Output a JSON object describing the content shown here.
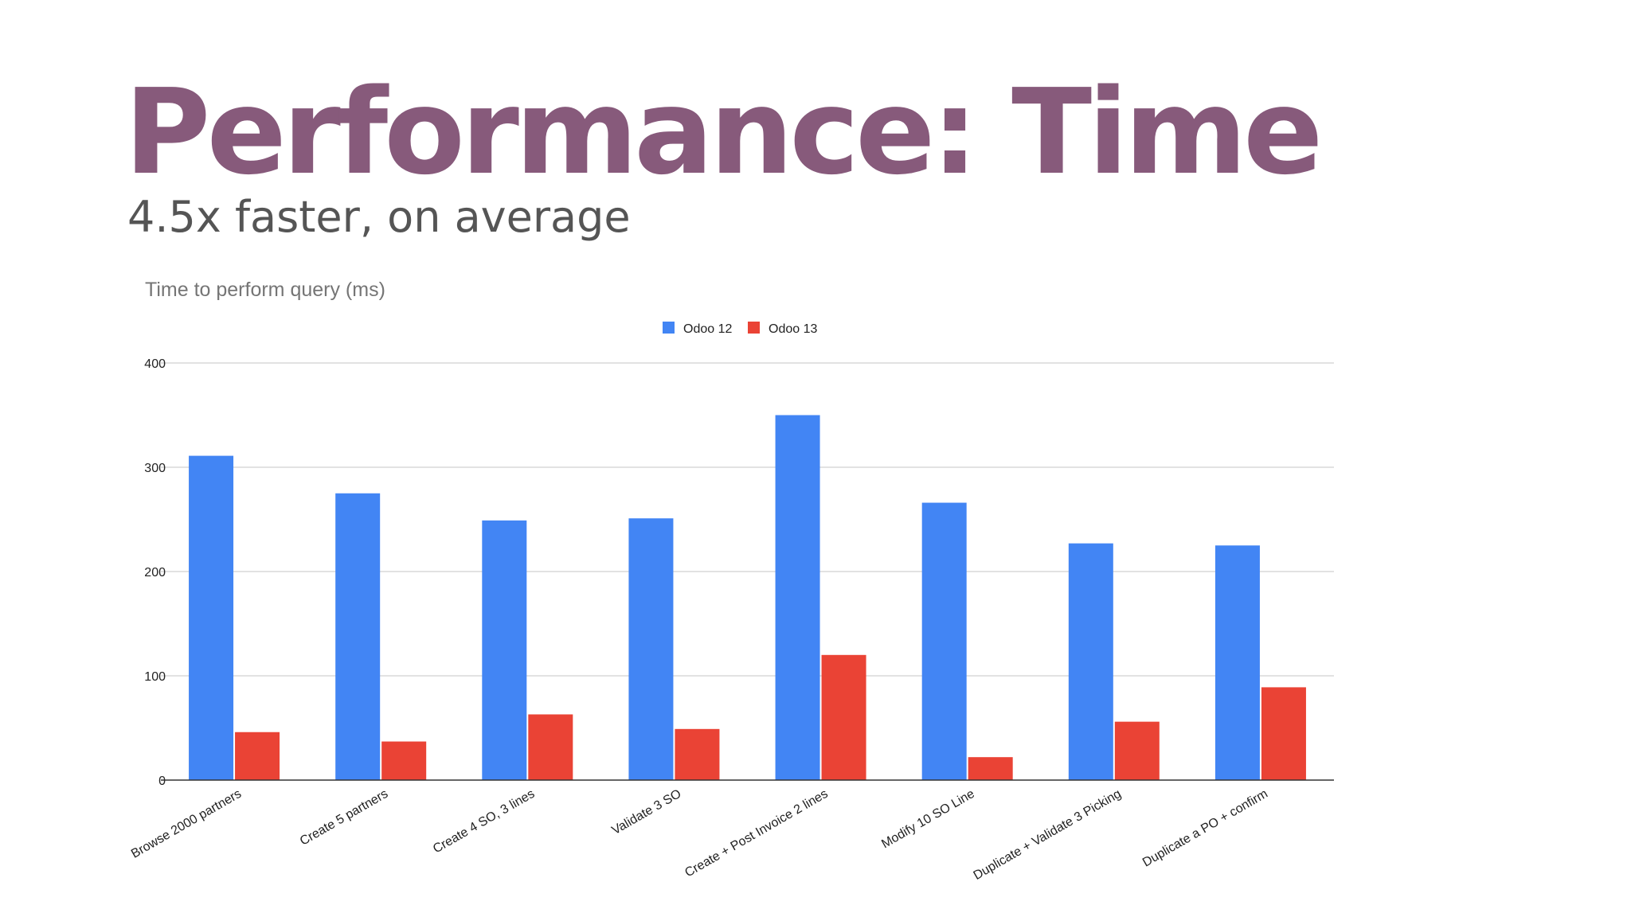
{
  "slide": {
    "title": "Performance: Time",
    "subtitle": "4.5x faster, on average"
  },
  "colors": {
    "title": "#875a7b",
    "subtitle": "#555555",
    "odoo12": "#4285f4",
    "odoo13": "#ea4335",
    "grid": "#d9d9d9",
    "axis": "#333333",
    "chart_title": "#757575",
    "tick_text": "#222222"
  },
  "chart_data": {
    "type": "bar",
    "title": "Time to perform query (ms)",
    "xlabel": "",
    "ylabel": "",
    "ylim": [
      0,
      400
    ],
    "yticks": [
      0,
      100,
      200,
      300,
      400
    ],
    "grid": true,
    "legend_position": "top-center",
    "categories": [
      "Browse 2000 partners",
      "Create 5 partners",
      "Create 4 SO, 3 lines",
      "Validate 3 SO",
      "Create + Post Invoice 2 lines",
      "Modify 10 SO Line",
      "Duplicate + Validate 3 Picking",
      "Duplicate a PO + confirm"
    ],
    "series": [
      {
        "name": "Odoo 12",
        "values": [
          311,
          275,
          249,
          251,
          350,
          266,
          227,
          225
        ]
      },
      {
        "name": "Odoo 13",
        "values": [
          46,
          37,
          63,
          49,
          120,
          22,
          56,
          89
        ]
      }
    ]
  }
}
